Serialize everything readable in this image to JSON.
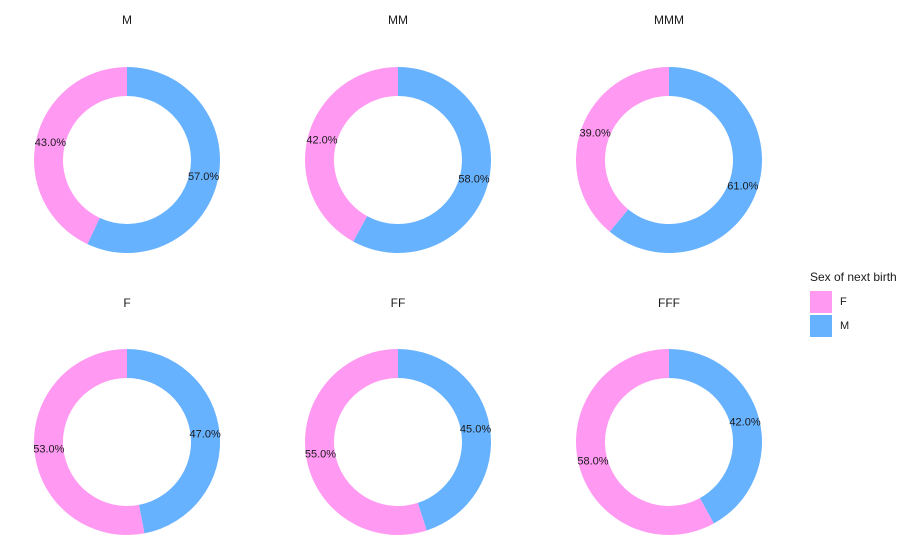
{
  "colors": {
    "F": "#FF99F2",
    "M": "#66B2FF"
  },
  "legend": {
    "title": "Sex of next birth",
    "items": [
      {
        "key": "F",
        "label": "F"
      },
      {
        "key": "M",
        "label": "M"
      }
    ]
  },
  "chart_data": [
    {
      "type": "pie",
      "title": "M",
      "slices": [
        {
          "category": "M",
          "value": 57.0,
          "label": "57.0%"
        },
        {
          "category": "F",
          "value": 43.0,
          "label": "43.0%"
        }
      ]
    },
    {
      "type": "pie",
      "title": "MM",
      "slices": [
        {
          "category": "M",
          "value": 58.0,
          "label": "58.0%"
        },
        {
          "category": "F",
          "value": 42.0,
          "label": "42.0%"
        }
      ]
    },
    {
      "type": "pie",
      "title": "MMM",
      "slices": [
        {
          "category": "M",
          "value": 61.0,
          "label": "61.0%"
        },
        {
          "category": "F",
          "value": 39.0,
          "label": "39.0%"
        }
      ]
    },
    {
      "type": "pie",
      "title": "F",
      "slices": [
        {
          "category": "M",
          "value": 47.0,
          "label": "47.0%"
        },
        {
          "category": "F",
          "value": 53.0,
          "label": "53.0%"
        }
      ]
    },
    {
      "type": "pie",
      "title": "FF",
      "slices": [
        {
          "category": "M",
          "value": 45.0,
          "label": "45.0%"
        },
        {
          "category": "F",
          "value": 55.0,
          "label": "55.0%"
        }
      ]
    },
    {
      "type": "pie",
      "title": "FFF",
      "slices": [
        {
          "category": "M",
          "value": 42.0,
          "label": "42.0%"
        },
        {
          "category": "F",
          "value": 58.0,
          "label": "58.0%"
        }
      ]
    }
  ]
}
